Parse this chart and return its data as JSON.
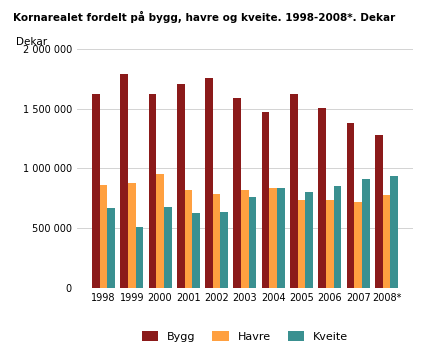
{
  "title": "Kornarealet fordelt på bygg, havre og kveite. 1998-2008*. Dekar",
  "ylabel": "Dekar",
  "categories": [
    "1998",
    "1999",
    "2000",
    "2001",
    "2002",
    "2003",
    "2004",
    "2005",
    "2006",
    "2007",
    "2008*"
  ],
  "bygg": [
    1620000,
    1790000,
    1620000,
    1710000,
    1760000,
    1590000,
    1470000,
    1620000,
    1510000,
    1380000,
    1280000
  ],
  "havre": [
    860000,
    880000,
    950000,
    820000,
    790000,
    820000,
    840000,
    740000,
    740000,
    720000,
    780000
  ],
  "kveite": [
    670000,
    510000,
    680000,
    630000,
    635000,
    760000,
    840000,
    800000,
    850000,
    910000,
    940000
  ],
  "color_bygg": "#8B1A1A",
  "color_havre": "#FFA040",
  "color_kveite": "#3A9090",
  "ylim": [
    0,
    2000000
  ],
  "yticks": [
    0,
    500000,
    1000000,
    1500000,
    2000000
  ],
  "ytick_labels": [
    "0",
    "500 000",
    "1 000 000",
    "1 500 000",
    "2 000 000"
  ],
  "legend_labels": [
    "Bygg",
    "Havre",
    "Kveite"
  ],
  "bar_width": 0.27,
  "background_color": "#ffffff",
  "grid_color": "#cccccc"
}
